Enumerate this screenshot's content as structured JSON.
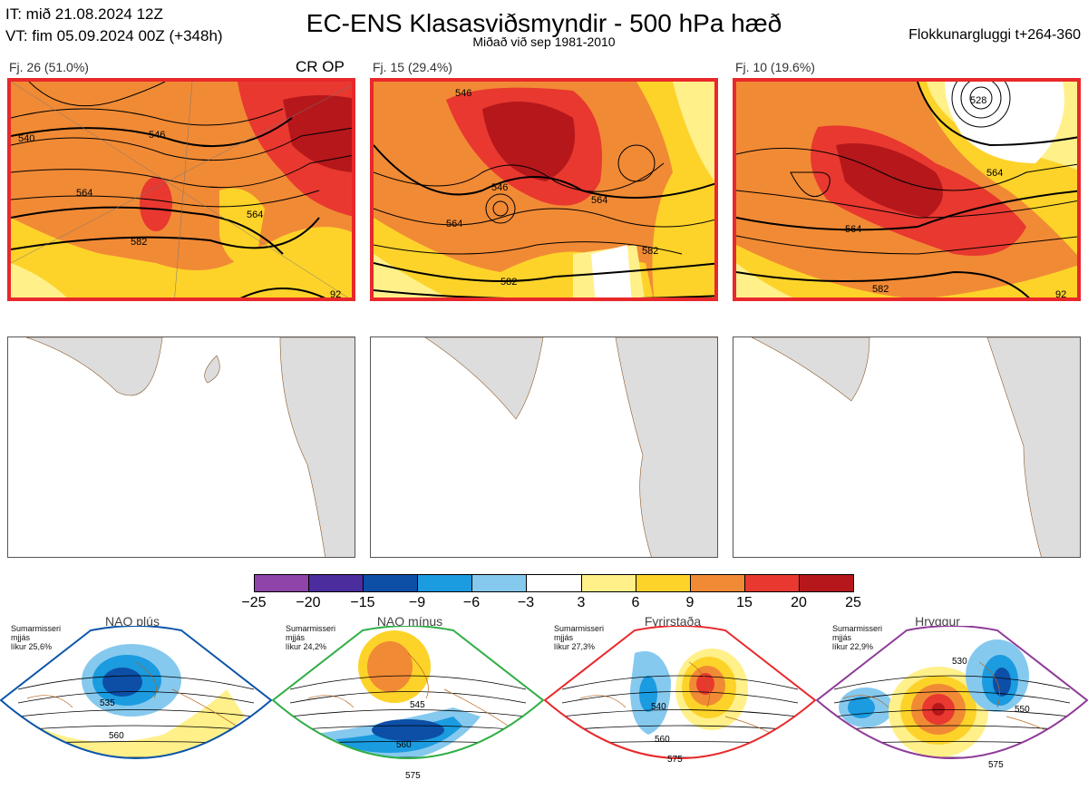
{
  "header": {
    "it": "IT: mið 21.08.2024 12Z",
    "vt": "VT: fim 05.09.2024 00Z  (+348h)",
    "title": "EC-ENS Klasasviðsmyndir - 500 hPa hæð",
    "subtitle": "Miðað við sep 1981-2010",
    "window": "Flokkunargluggi t+264-360"
  },
  "clusters": [
    {
      "label": "Fj. 26 (51.0%)",
      "tag": "CR OP",
      "contours": [
        "540",
        "546",
        "564",
        "564",
        "582",
        "92"
      ]
    },
    {
      "label": "Fj. 15 (29.4%)",
      "tag": "",
      "contours": [
        "546",
        "546",
        "564",
        "564",
        "582",
        "582"
      ]
    },
    {
      "label": "Fj. 10 (19.6%)",
      "tag": "",
      "contours": [
        "528",
        "564",
        "564",
        "582",
        "92"
      ]
    }
  ],
  "colorbar": {
    "ticks": [
      "−25",
      "−20",
      "−15",
      "−9",
      "−6",
      "−3",
      "3",
      "6",
      "9",
      "15",
      "20",
      "25"
    ],
    "colors": [
      "#8e44a8",
      "#4b2d9e",
      "#0d4fa6",
      "#1b9be0",
      "#86c9ee",
      "#ffffff",
      "#fff08a",
      "#fdd32a",
      "#f18a35",
      "#e8382f",
      "#b5171b"
    ]
  },
  "regimes": [
    {
      "name": "NAO plús",
      "info": [
        "Sumarmisseri",
        "mjjás",
        "líkur 25,6%"
      ],
      "color": "#0a55a8",
      "contours": [
        "535",
        "560"
      ]
    },
    {
      "name": "NAO mínus",
      "info": [
        "Sumarmisseri",
        "mjjás",
        "líkur 24,2%"
      ],
      "color": "#2fae44",
      "contours": [
        "545",
        "560",
        "575"
      ]
    },
    {
      "name": "Fyrirstaða",
      "info": [
        "Sumarmisseri",
        "mjjás",
        "líkur 27,3%"
      ],
      "color": "#e8282a",
      "contours": [
        "540",
        "560",
        "575"
      ]
    },
    {
      "name": "Hryggur",
      "info": [
        "Sumarmisseri",
        "mjjás",
        "líkur 22,9%"
      ],
      "color": "#8e3a97",
      "contours": [
        "530",
        "550",
        "575"
      ]
    }
  ]
}
